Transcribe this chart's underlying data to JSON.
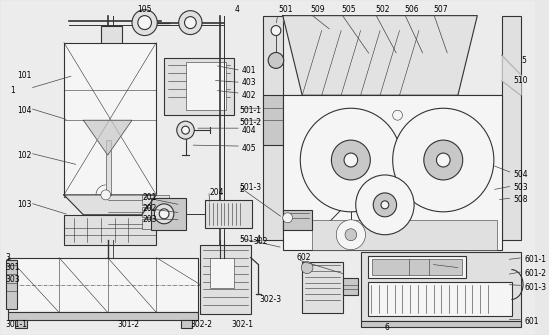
{
  "bg": "#e8e8e8",
  "lc": "#333333",
  "lw_main": 0.8,
  "lw_thin": 0.4,
  "fc_light": "#f0f0f0",
  "fc_mid": "#d8d8d8",
  "fc_dark": "#c0c0c0"
}
